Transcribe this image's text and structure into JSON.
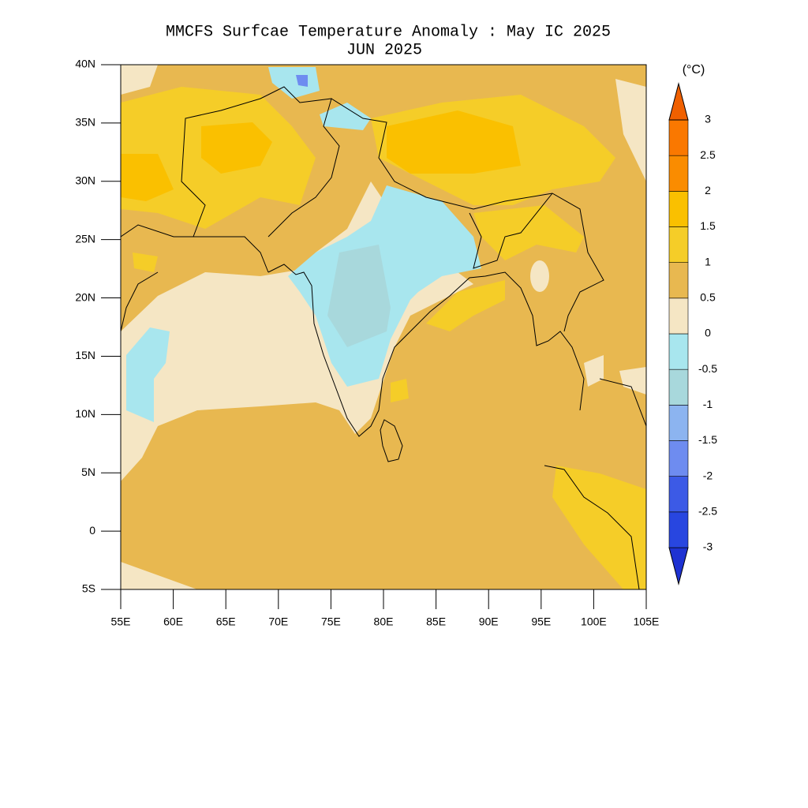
{
  "title": "MMCFS Surfcae Temperature Anomaly : May IC 2025",
  "subtitle": "JUN 2025",
  "map": {
    "xlim": [
      55,
      105
    ],
    "ylim": [
      -5,
      40
    ],
    "xticks": [
      {
        "value": 55,
        "label": "55E"
      },
      {
        "value": 60,
        "label": "60E"
      },
      {
        "value": 65,
        "label": "65E"
      },
      {
        "value": 70,
        "label": "70E"
      },
      {
        "value": 75,
        "label": "75E"
      },
      {
        "value": 80,
        "label": "80E"
      },
      {
        "value": 85,
        "label": "85E"
      },
      {
        "value": 90,
        "label": "90E"
      },
      {
        "value": 95,
        "label": "95E"
      },
      {
        "value": 100,
        "label": "100E"
      },
      {
        "value": 105,
        "label": "105E"
      }
    ],
    "yticks": [
      {
        "value": -5,
        "label": "5S"
      },
      0,
      {
        "value": 5,
        "label": "5N"
      },
      {
        "value": 10,
        "label": "10N"
      },
      {
        "value": 15,
        "label": "15N"
      },
      {
        "value": 20,
        "label": "20N"
      },
      {
        "value": 25,
        "label": "25N"
      },
      {
        "value": 30,
        "label": "30N"
      },
      {
        "value": 35,
        "label": "35N"
      },
      {
        "value": 40,
        "label": "40N"
      }
    ]
  },
  "colorbar": {
    "unit": "(°C)",
    "levels": [
      -3,
      -2.5,
      -2,
      -1.5,
      -1,
      -0.5,
      0,
      0.5,
      1,
      1.5,
      2,
      2.5,
      3
    ],
    "colors": [
      "#1e32d2",
      "#2846e0",
      "#3c5ae6",
      "#6e8cf0",
      "#8cb4f0",
      "#a8d8dc",
      "#a8e6ee",
      "#f5e6c4",
      "#e8b850",
      "#f5cd28",
      "#fac000",
      "#fa8c00",
      "#fa7800",
      "#f06000"
    ]
  }
}
